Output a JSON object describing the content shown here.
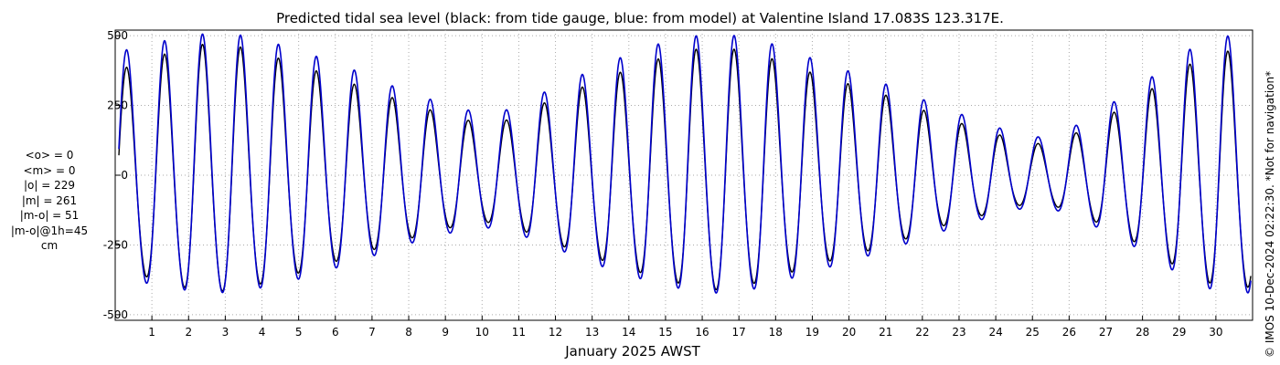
{
  "chart_data": {
    "type": "line",
    "title": "Predicted tidal sea level (black: from tide gauge, blue: from model) at Valentine Island 17.083S 123.317E.",
    "xlabel": "January 2025 AWST",
    "ylabel": "",
    "xlim": [
      0,
      31
    ],
    "ylim": [
      -520,
      520
    ],
    "x_ticks": [
      1,
      2,
      3,
      4,
      5,
      6,
      7,
      8,
      9,
      10,
      11,
      12,
      13,
      14,
      15,
      16,
      17,
      18,
      19,
      20,
      21,
      22,
      23,
      24,
      25,
      26,
      27,
      28,
      29,
      30
    ],
    "x_tick_labels": [
      "1",
      "2",
      "3",
      "4",
      "5",
      "6",
      "7",
      "8",
      "9",
      "10",
      "11",
      "12",
      "13",
      "14",
      "15",
      "16",
      "17",
      "18",
      "19",
      "20",
      "21",
      "22",
      "23",
      "24",
      "25",
      "26",
      "27",
      "28",
      "29",
      "30"
    ],
    "y_ticks": [
      500,
      250,
      0,
      -250,
      -500
    ],
    "y_tick_labels": [
      "500",
      "250",
      "0",
      "-250",
      "-500"
    ],
    "grid": true,
    "series": [
      {
        "name": "tide gauge",
        "color": "#000000",
        "amplitude_envelope": [
          {
            "day": 0.3,
            "amp": 390
          },
          {
            "day": 1.6,
            "amp": 450
          },
          {
            "day": 2.6,
            "amp": 480
          },
          {
            "day": 3.6,
            "amp": 460
          },
          {
            "day": 5.0,
            "amp": 400
          },
          {
            "day": 6.5,
            "amp": 330
          },
          {
            "day": 8.0,
            "amp": 260
          },
          {
            "day": 9.5,
            "amp": 200
          },
          {
            "day": 10.5,
            "amp": 190
          },
          {
            "day": 12.0,
            "amp": 280
          },
          {
            "day": 13.5,
            "amp": 360
          },
          {
            "day": 15.0,
            "amp": 430
          },
          {
            "day": 16.3,
            "amp": 470
          },
          {
            "day": 17.5,
            "amp": 440
          },
          {
            "day": 19.0,
            "amp": 370
          },
          {
            "day": 21.0,
            "amp": 290
          },
          {
            "day": 22.5,
            "amp": 210
          },
          {
            "day": 24.0,
            "amp": 150
          },
          {
            "day": 25.0,
            "amp": 110
          },
          {
            "day": 26.0,
            "amp": 140
          },
          {
            "day": 27.0,
            "amp": 210
          },
          {
            "day": 28.0,
            "amp": 290
          },
          {
            "day": 29.0,
            "amp": 380
          },
          {
            "day": 29.8,
            "amp": 440
          },
          {
            "day": 31.0,
            "amp": 460
          }
        ]
      },
      {
        "name": "model",
        "color": "#0000cc",
        "amplitude_envelope": [
          {
            "day": 0.3,
            "amp": 440
          },
          {
            "day": 1.6,
            "amp": 480
          },
          {
            "day": 2.6,
            "amp": 500
          },
          {
            "day": 3.6,
            "amp": 490
          },
          {
            "day": 5.0,
            "amp": 440
          },
          {
            "day": 6.5,
            "amp": 370
          },
          {
            "day": 8.0,
            "amp": 290
          },
          {
            "day": 9.5,
            "amp": 230
          },
          {
            "day": 10.5,
            "amp": 220
          },
          {
            "day": 12.0,
            "amp": 310
          },
          {
            "day": 13.5,
            "amp": 400
          },
          {
            "day": 15.0,
            "amp": 470
          },
          {
            "day": 16.3,
            "amp": 500
          },
          {
            "day": 17.5,
            "amp": 480
          },
          {
            "day": 19.0,
            "amp": 410
          },
          {
            "day": 21.0,
            "amp": 320
          },
          {
            "day": 22.5,
            "amp": 240
          },
          {
            "day": 24.0,
            "amp": 170
          },
          {
            "day": 25.0,
            "amp": 130
          },
          {
            "day": 26.0,
            "amp": 160
          },
          {
            "day": 27.0,
            "amp": 240
          },
          {
            "day": 28.0,
            "amp": 320
          },
          {
            "day": 29.0,
            "amp": 420
          },
          {
            "day": 29.8,
            "amp": 480
          },
          {
            "day": 31.0,
            "amp": 500
          }
        ]
      }
    ]
  },
  "stats": {
    "mean_o": "<o> = 0",
    "mean_m": "<m> = 0",
    "abs_o": "|o| = 229",
    "abs_m": "|m| = 261",
    "abs_diff": "|m-o| = 51",
    "abs_diff_1h": "|m-o|@1h=45",
    "unit": "cm"
  },
  "side_note": "© IMOS 10-Dec-2024 02:22:30. *Not for navigation*"
}
